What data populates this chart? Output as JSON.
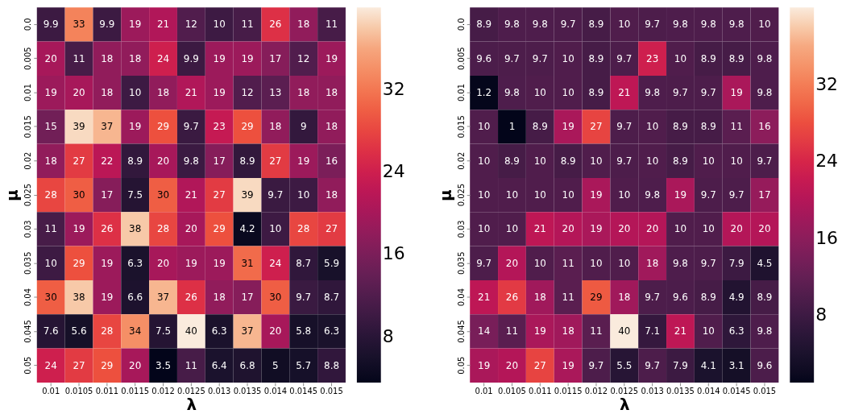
{
  "chart_data": [
    {
      "type": "heatmap",
      "xlabel": "λ",
      "ylabel": "μ",
      "categories": [
        "0.01",
        "0.0105",
        "0.011",
        "0.0115",
        "0.012",
        "0.0125",
        "0.013",
        "0.0135",
        "0.014",
        "0.0145",
        "0.015"
      ],
      "y_categories": [
        "0.0",
        "0.005",
        "0.01",
        "0.015",
        "0.02",
        "0.025",
        "0.03",
        "0.035",
        "0.04",
        "0.045",
        "0.05"
      ],
      "cells": [
        [
          9.9,
          33,
          9.9,
          19,
          21,
          12,
          10,
          11,
          26,
          18,
          11
        ],
        [
          20,
          11,
          18,
          18,
          24,
          9.9,
          19,
          19,
          17,
          12,
          19
        ],
        [
          19,
          20,
          18,
          10,
          18,
          21,
          19,
          12,
          13,
          18,
          18
        ],
        [
          15,
          39,
          37,
          19,
          29,
          9.7,
          23,
          29,
          18,
          9,
          18
        ],
        [
          18,
          27,
          22,
          8.9,
          20,
          9.8,
          17,
          8.9,
          27,
          19,
          16
        ],
        [
          28,
          30,
          17,
          7.5,
          30,
          21,
          27,
          39,
          9.7,
          10,
          18
        ],
        [
          11,
          19,
          26,
          38,
          28,
          20,
          29,
          4.2,
          10,
          28,
          27
        ],
        [
          10,
          29,
          19,
          6.3,
          20,
          19,
          19,
          31,
          24,
          8.7,
          5.9
        ],
        [
          30,
          38,
          19,
          6.6,
          37,
          26,
          18,
          17,
          30,
          9.7,
          8.7
        ],
        [
          7.6,
          5.6,
          28,
          34,
          7.5,
          40,
          6.3,
          37,
          20,
          5.8,
          6.3
        ],
        [
          24,
          27,
          29,
          20,
          3.5,
          11,
          6.4,
          6.8,
          5,
          5.7,
          8.8
        ]
      ],
      "data_labels": true,
      "clim": [
        3.5,
        40
      ],
      "cticks": [
        8,
        16,
        24,
        32
      ]
    },
    {
      "type": "heatmap",
      "xlabel": "λ",
      "ylabel": "μ",
      "categories": [
        "0.01",
        "0.0105",
        "0.011",
        "0.0115",
        "0.012",
        "0.0125",
        "0.013",
        "0.0135",
        "0.014",
        "0.0145",
        "0.015"
      ],
      "y_categories": [
        "0.0",
        "0.005",
        "0.01",
        "0.015",
        "0.02",
        "0.025",
        "0.03",
        "0.035",
        "0.04",
        "0.045",
        "0.05"
      ],
      "cells": [
        [
          8.9,
          9.8,
          9.8,
          9.7,
          8.9,
          10,
          9.7,
          9.8,
          9.8,
          9.8,
          10
        ],
        [
          9.6,
          9.7,
          9.7,
          10,
          8.9,
          9.7,
          23,
          10,
          8.9,
          8.9,
          9.8
        ],
        [
          1.2,
          9.8,
          10,
          10,
          8.9,
          21,
          9.8,
          9.7,
          9.7,
          19,
          9.8
        ],
        [
          10,
          1,
          8.9,
          19,
          27,
          9.7,
          10,
          8.9,
          8.9,
          11,
          16
        ],
        [
          10,
          8.9,
          10,
          8.9,
          10,
          9.7,
          10,
          8.9,
          10,
          10,
          9.7
        ],
        [
          10,
          10,
          10,
          10,
          19,
          10,
          9.8,
          19,
          9.7,
          9.7,
          17
        ],
        [
          10,
          10,
          21,
          20,
          19,
          20,
          20,
          10,
          10,
          20,
          20
        ],
        [
          9.7,
          20,
          10,
          11,
          10,
          10,
          18,
          9.8,
          9.7,
          7.9,
          4.5
        ],
        [
          21,
          26,
          18,
          11,
          29,
          18,
          9.7,
          9.6,
          8.9,
          4.9,
          8.9
        ],
        [
          14,
          11,
          19,
          18,
          11,
          40,
          7.1,
          21,
          10,
          6.3,
          9.8
        ],
        [
          19,
          20,
          27,
          19,
          9.7,
          5.5,
          9.7,
          7.9,
          4.1,
          3.1,
          9.6
        ]
      ],
      "data_labels": true,
      "clim": [
        1,
        40
      ],
      "cticks": [
        8,
        16,
        24,
        32
      ]
    }
  ]
}
